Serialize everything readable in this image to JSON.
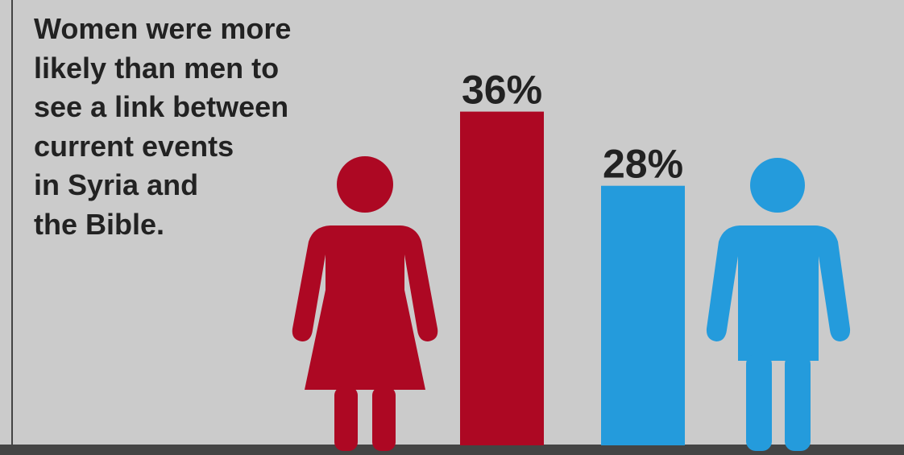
{
  "headline": {
    "lines": [
      "Women were more",
      "likely than men to",
      "see a link between",
      "current events",
      "in Syria and",
      "the Bible."
    ]
  },
  "colors": {
    "background": "#cbcbcb",
    "frame_line": "#444444",
    "women": "#ad0823",
    "men": "#249bdc",
    "text": "#222222"
  },
  "icons": {
    "women": "woman-icon",
    "men": "man-icon"
  },
  "chart_data": {
    "type": "bar",
    "title": "",
    "xlabel": "",
    "ylabel": "",
    "ylim": [
      0,
      45
    ],
    "grid": false,
    "legend": "none",
    "categories": [
      "Women",
      "Men"
    ],
    "values": [
      36,
      28
    ],
    "labels": [
      "36%",
      "28%"
    ]
  }
}
